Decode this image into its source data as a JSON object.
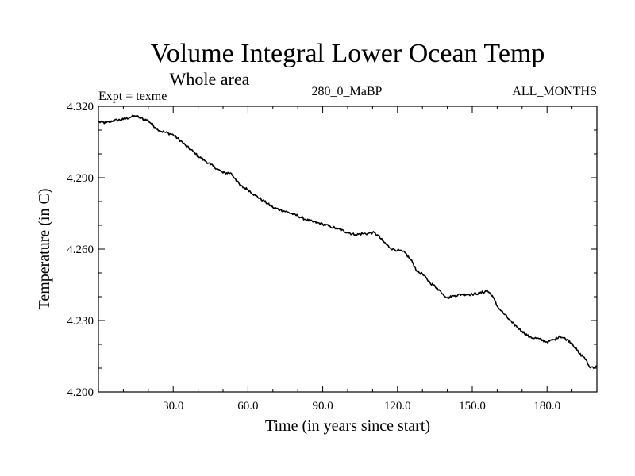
{
  "chart_data": {
    "type": "line",
    "title": "Volume Integral Lower Ocean Temp",
    "subtitle": "Whole area",
    "annotations": {
      "left": "Expt = texme",
      "center": "280_0_MaBP",
      "right": "ALL_MONTHS"
    },
    "xlabel": "Time (in years since start)",
    "ylabel": "Temperature (in C)",
    "xlim": [
      0,
      200
    ],
    "ylim": [
      4.2,
      4.32
    ],
    "x_ticks": [
      30,
      60,
      90,
      120,
      150,
      180
    ],
    "x_tick_labels": [
      "30.0",
      "60.0",
      "90.0",
      "120.0",
      "150.0",
      "180.0"
    ],
    "y_ticks": [
      4.2,
      4.23,
      4.26,
      4.29,
      4.32
    ],
    "y_tick_labels": [
      "4.200",
      "4.230",
      "4.260",
      "4.290",
      "4.320"
    ],
    "grid": false,
    "series": [
      {
        "name": "Volume Integral Lower Ocean Temp",
        "color": "#000000",
        "x": [
          0,
          3,
          6,
          10,
          13,
          15,
          17,
          20,
          23,
          25,
          27,
          30,
          33,
          35,
          38,
          40,
          43,
          45,
          48,
          50,
          53,
          55,
          57,
          60,
          63,
          66,
          70,
          73,
          76,
          80,
          83,
          86,
          90,
          93,
          96,
          100,
          103,
          106,
          108,
          110,
          112,
          114,
          117,
          120,
          123,
          126,
          128,
          130,
          133,
          136,
          140,
          143,
          146,
          150,
          153,
          156,
          158,
          160,
          163,
          166,
          170,
          173,
          176,
          180,
          183,
          185,
          188,
          190,
          193,
          195,
          197,
          200
        ],
        "values": [
          4.3135,
          4.313,
          4.314,
          4.3145,
          4.3155,
          4.316,
          4.315,
          4.314,
          4.311,
          4.3095,
          4.309,
          4.308,
          4.3055,
          4.3035,
          4.301,
          4.299,
          4.297,
          4.2955,
          4.2935,
          4.292,
          4.292,
          4.2895,
          4.2865,
          4.285,
          4.2825,
          4.2805,
          4.2775,
          4.2765,
          4.2755,
          4.274,
          4.2725,
          4.2715,
          4.2705,
          4.2695,
          4.2685,
          4.267,
          4.266,
          4.2665,
          4.2665,
          4.267,
          4.266,
          4.2635,
          4.2605,
          4.2595,
          4.2585,
          4.2545,
          4.2505,
          4.2495,
          4.246,
          4.2435,
          4.2395,
          4.2405,
          4.241,
          4.241,
          4.2415,
          4.2425,
          4.2405,
          4.236,
          4.2325,
          4.229,
          4.2255,
          4.223,
          4.2225,
          4.221,
          4.222,
          4.2235,
          4.222,
          4.2205,
          4.216,
          4.2145,
          4.2105,
          4.2105
        ]
      }
    ]
  }
}
